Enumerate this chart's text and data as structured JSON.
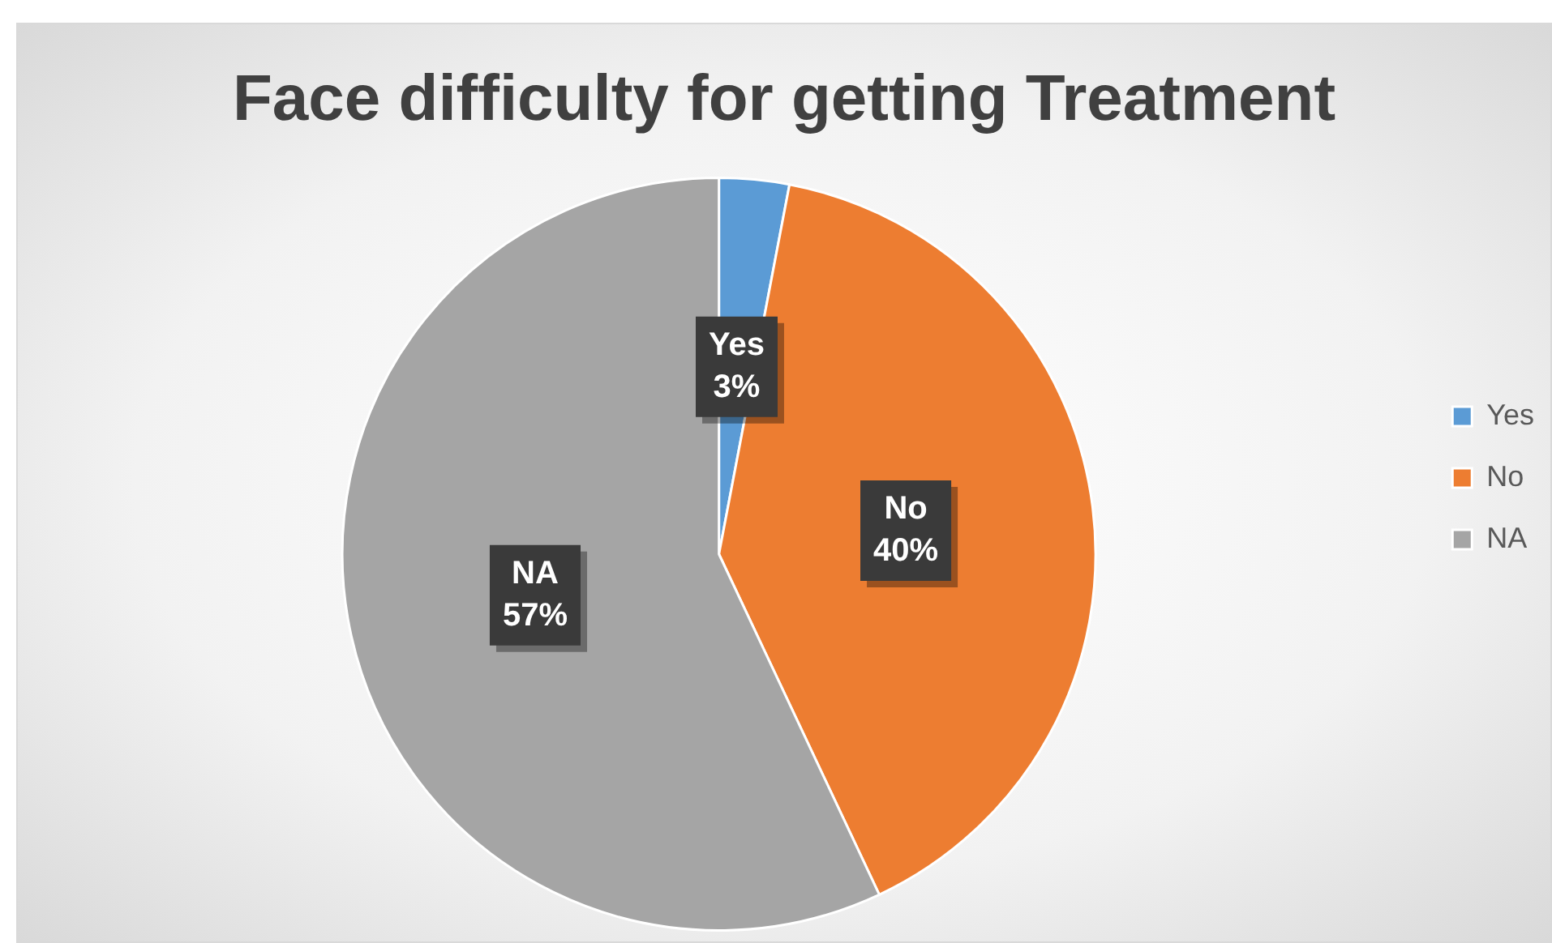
{
  "chart_data": {
    "type": "pie",
    "title": "Face difficulty for getting Treatment",
    "categories": [
      "Yes",
      "No",
      "NA"
    ],
    "values": [
      3,
      40,
      57
    ],
    "colors": [
      "#5b9bd5",
      "#ed7d31",
      "#a5a5a5"
    ],
    "value_labels": [
      "3%",
      "40%",
      "57%"
    ],
    "legend": "right"
  }
}
